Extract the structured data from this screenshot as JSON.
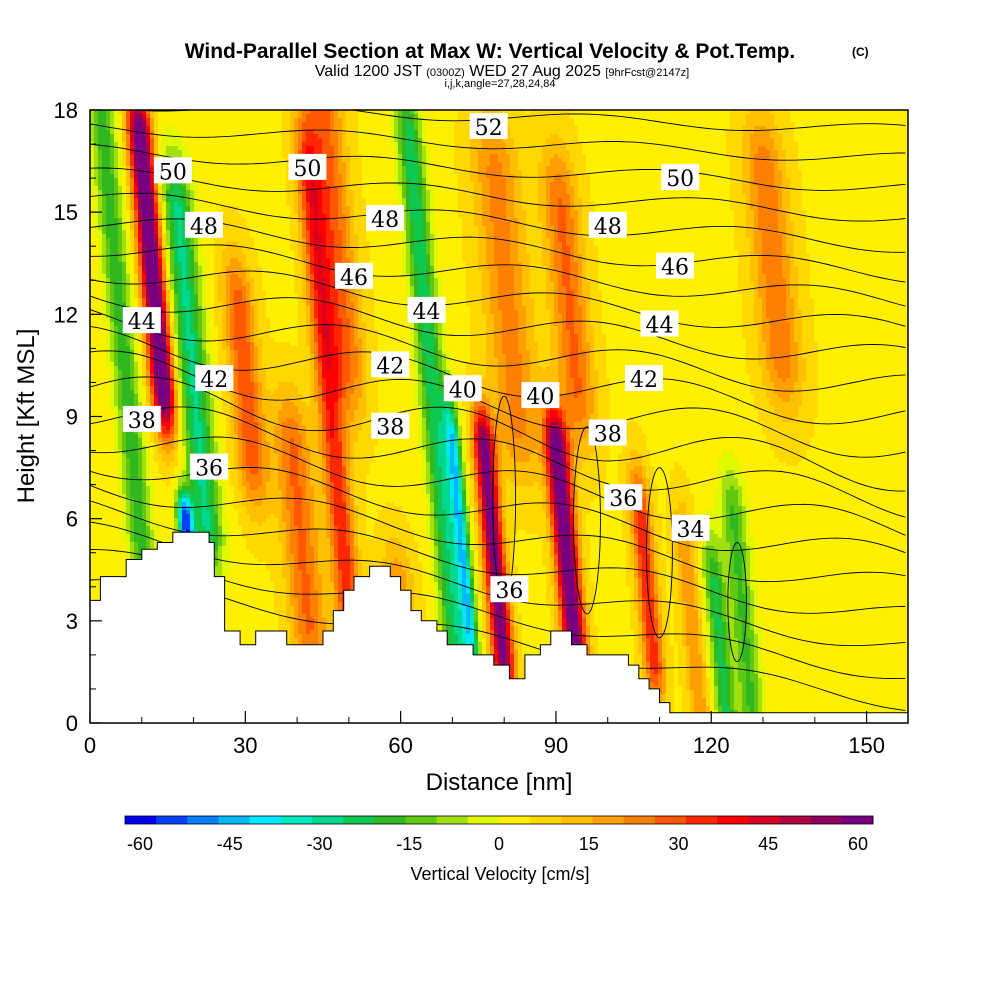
{
  "title": {
    "main": "Wind-Parallel Section at Max W: Vertical Velocity & Pot.Temp.",
    "copyright": "(C)",
    "valid_prefix": "Valid 1200 JST",
    "valid_utc": "(0300Z)",
    "valid_date": "WED 27 Aug 2025",
    "forecast": "[9hrFcst@2147z]",
    "indices": "i,j,k,angle=27,28,24,84"
  },
  "chart_data": {
    "type": "heatmap",
    "xlabel": "Distance [nm]",
    "ylabel": "Height [Kft MSL]",
    "xlim": [
      0,
      158
    ],
    "ylim": [
      0,
      18
    ],
    "x_ticks": [
      0,
      30,
      60,
      90,
      120,
      150
    ],
    "y_ticks": [
      0,
      3,
      6,
      9,
      12,
      15,
      18
    ],
    "colorbar": {
      "label": "Vertical Velocity [cm/s]",
      "min": -60,
      "max": 60,
      "step": 5,
      "tick_values": [
        -60,
        -45,
        -30,
        -15,
        0,
        15,
        30,
        45,
        60
      ],
      "colors": [
        "#0000f0",
        "#0040ff",
        "#0080ff",
        "#00b8ff",
        "#00e8ff",
        "#00e8c0",
        "#00d890",
        "#10c850",
        "#30b820",
        "#60c810",
        "#a0e010",
        "#e0f800",
        "#fff000",
        "#ffd800",
        "#ffc000",
        "#ffa000",
        "#ff8000",
        "#ff5800",
        "#ff2800",
        "#ff0000",
        "#d80020",
        "#b00040",
        "#900060",
        "#780080"
      ]
    },
    "contour_labels": [
      {
        "text": "50",
        "x": 16,
        "y": 16.2
      },
      {
        "text": "50",
        "x": 42,
        "y": 16.3
      },
      {
        "text": "52",
        "x": 77,
        "y": 17.5
      },
      {
        "text": "50",
        "x": 114,
        "y": 16.0
      },
      {
        "text": "48",
        "x": 22,
        "y": 14.6
      },
      {
        "text": "48",
        "x": 57,
        "y": 14.8
      },
      {
        "text": "48",
        "x": 100,
        "y": 14.6
      },
      {
        "text": "46",
        "x": 51,
        "y": 13.1
      },
      {
        "text": "46",
        "x": 113,
        "y": 13.4
      },
      {
        "text": "44",
        "x": 10,
        "y": 11.8
      },
      {
        "text": "44",
        "x": 65,
        "y": 12.1
      },
      {
        "text": "44",
        "x": 110,
        "y": 11.7
      },
      {
        "text": "42",
        "x": 24,
        "y": 10.1
      },
      {
        "text": "42",
        "x": 58,
        "y": 10.5
      },
      {
        "text": "42",
        "x": 107,
        "y": 10.1
      },
      {
        "text": "40",
        "x": 72,
        "y": 9.8
      },
      {
        "text": "40",
        "x": 87,
        "y": 9.6
      },
      {
        "text": "38",
        "x": 10,
        "y": 8.9
      },
      {
        "text": "38",
        "x": 58,
        "y": 8.7
      },
      {
        "text": "38",
        "x": 100,
        "y": 8.5
      },
      {
        "text": "36",
        "x": 23,
        "y": 7.5
      },
      {
        "text": "36",
        "x": 103,
        "y": 6.6
      },
      {
        "text": "36",
        "x": 81,
        "y": 3.9
      },
      {
        "text": "34",
        "x": 116,
        "y": 5.7
      }
    ]
  }
}
